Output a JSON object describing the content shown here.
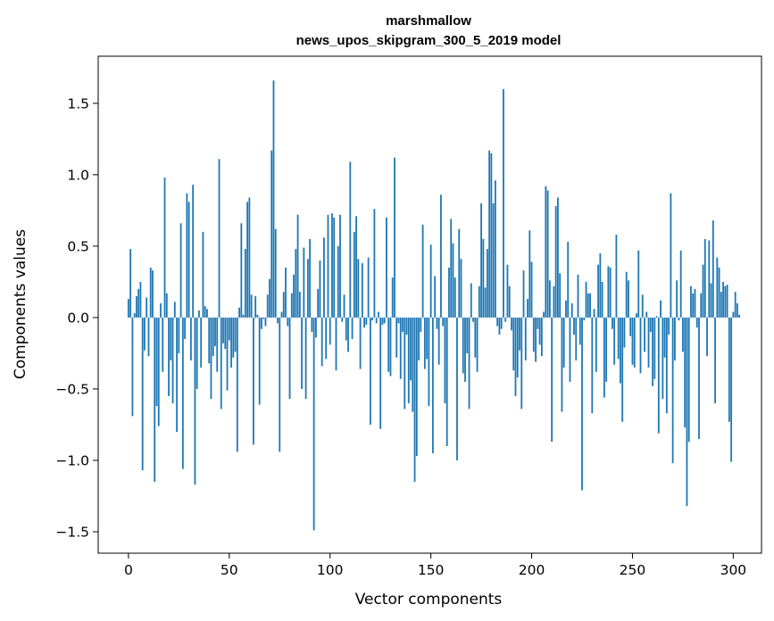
{
  "chart_data": {
    "type": "bar",
    "title_line1": "marshmallow",
    "title_line2": "news_upos_skipgram_300_5_2019 model",
    "xlabel": "Vector components",
    "ylabel": "Components values",
    "xlim": [
      -15,
      314
    ],
    "ylim": [
      -1.65,
      1.83
    ],
    "xticks": [
      0,
      50,
      100,
      150,
      200,
      250,
      300
    ],
    "xtick_labels": [
      "0",
      "50",
      "100",
      "150",
      "200",
      "250",
      "300"
    ],
    "yticks": [
      -1.5,
      -1.0,
      -0.5,
      0.0,
      0.5,
      1.0,
      1.5
    ],
    "ytick_labels": [
      "−1.5",
      "−1.0",
      "−0.5",
      "0.0",
      "0.5",
      "1.0",
      "1.5"
    ],
    "bar_color": "#1f77b4",
    "values": [
      0.13,
      0.48,
      -0.69,
      0.03,
      0.15,
      0.2,
      0.25,
      -1.07,
      -0.23,
      0.14,
      -0.27,
      0.35,
      0.33,
      -1.15,
      -0.62,
      -0.76,
      0.1,
      -0.38,
      0.98,
      0.17,
      -0.55,
      -0.3,
      -0.6,
      0.11,
      -0.8,
      -0.25,
      0.66,
      -1.06,
      -0.15,
      0.87,
      0.81,
      -0.3,
      0.93,
      -1.17,
      -0.5,
      0.05,
      -0.35,
      0.6,
      0.08,
      0.06,
      -0.32,
      -0.57,
      -0.27,
      -0.2,
      -0.38,
      1.11,
      -0.64,
      -0.18,
      -0.22,
      -0.51,
      -0.16,
      -0.35,
      -0.28,
      -0.24,
      -0.94,
      0.07,
      0.66,
      0.02,
      0.48,
      0.81,
      0.84,
      0.16,
      -0.89,
      0.15,
      0.02,
      -0.61,
      -0.08,
      -0.01,
      -0.06,
      0.16,
      0.27,
      1.17,
      1.66,
      0.62,
      -0.04,
      -0.94,
      0.04,
      0.18,
      0.35,
      -0.06,
      -0.57,
      0.17,
      0.3,
      0.48,
      0.72,
      0.18,
      -0.5,
      0.49,
      -0.57,
      0.41,
      0.55,
      -0.1,
      -1.49,
      -0.14,
      0.2,
      0.4,
      -0.34,
      0.56,
      -0.29,
      0.72,
      -0.19,
      0.73,
      0.7,
      -0.37,
      0.5,
      0.72,
      -0.03,
      0.16,
      -0.16,
      -0.24,
      1.09,
      -0.15,
      0.6,
      0.71,
      0.41,
      -0.36,
      0.38,
      -0.07,
      -0.05,
      0.42,
      -0.75,
      -0.02,
      0.76,
      -0.04,
      0.04,
      -0.78,
      -0.05,
      -0.04,
      0.7,
      -0.38,
      -0.41,
      0.28,
      1.12,
      -0.28,
      -0.04,
      -0.43,
      -0.1,
      -0.64,
      -0.12,
      -0.6,
      -0.44,
      -0.66,
      -1.15,
      -0.97,
      -0.3,
      -0.1,
      0.65,
      -0.36,
      -0.29,
      -0.62,
      0.51,
      -0.95,
      0.29,
      -0.08,
      -0.33,
      0.86,
      -0.06,
      -0.6,
      -0.9,
      0.35,
      0.69,
      0.52,
      0.28,
      -1.0,
      0.62,
      0.41,
      -0.39,
      -0.45,
      -0.25,
      -0.64,
      0.24,
      -0.03,
      -0.28,
      -0.38,
      0.22,
      0.8,
      0.55,
      0.21,
      0.48,
      1.17,
      1.15,
      0.8,
      0.96,
      -0.06,
      -0.12,
      -0.08,
      1.6,
      -0.03,
      0.37,
      0.22,
      -0.09,
      -0.37,
      -0.55,
      -0.42,
      -0.23,
      -0.64,
      0.33,
      -0.3,
      0.13,
      0.61,
      0.39,
      -0.24,
      -0.31,
      -0.08,
      -0.19,
      -0.27,
      0.04,
      0.92,
      0.89,
      0.26,
      -0.87,
      0.22,
      0.78,
      0.84,
      0.31,
      -0.66,
      -0.35,
      0.12,
      0.53,
      -0.45,
      0.1,
      -0.12,
      -0.3,
      0.3,
      -0.19,
      -1.21,
      -0.02,
      0.25,
      0.17,
      0.17,
      -0.67,
      0.06,
      -0.38,
      0.37,
      0.45,
      0.25,
      -0.56,
      -0.45,
      0.36,
      0.35,
      -0.08,
      -0.33,
      0.58,
      -0.29,
      -0.46,
      -0.73,
      -0.21,
      0.32,
      0.26,
      -0.13,
      -0.33,
      -0.35,
      0.03,
      0.47,
      -0.39,
      0.16,
      -0.24,
      0.04,
      -0.35,
      -0.1,
      -0.48,
      -0.43,
      0.01,
      -0.81,
      0.12,
      -0.57,
      -0.28,
      -0.67,
      -0.12,
      0.87,
      -1.02,
      -0.3,
      0.26,
      -0.02,
      0.47,
      -0.24,
      -0.77,
      -1.32,
      -0.87,
      0.22,
      0.17,
      0.2,
      -0.07,
      -0.85,
      0.17,
      0.37,
      0.55,
      -0.27,
      0.54,
      0.24,
      0.68,
      -0.6,
      0.42,
      0.35,
      0.18,
      0.25,
      0.22,
      0.23,
      -0.73,
      -1.01,
      0.04,
      0.18,
      0.1,
      0.02
    ]
  }
}
